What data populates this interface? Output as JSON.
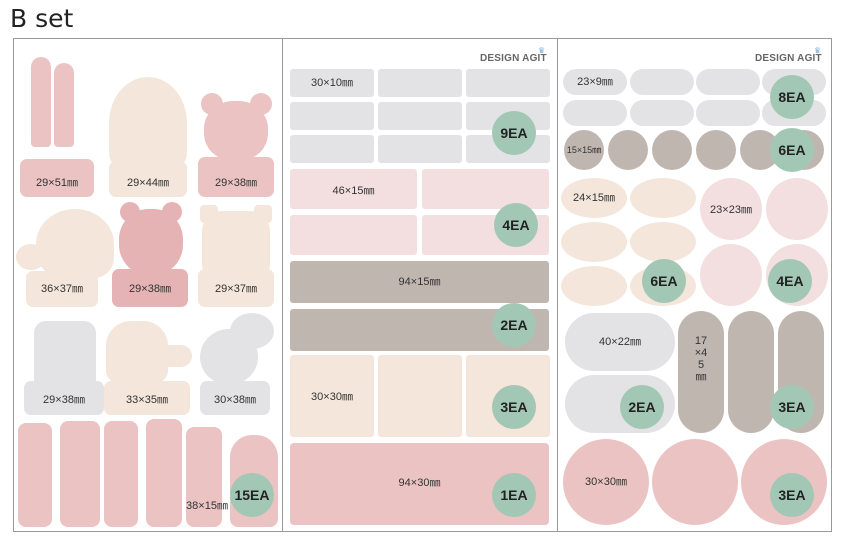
{
  "page": {
    "title": "B set"
  },
  "brand": "DESIGN AGIT",
  "colors": {
    "pink": "#ebc3c3",
    "cream": "#f4e6da",
    "light_gray": "#e3e3e6",
    "light_pink": "#f3dfe0",
    "taupe": "#c0b6b0",
    "mint_badge": "#a3c7b5"
  },
  "panel1": {
    "labels": [
      "29×51㎜",
      "29×44㎜",
      "29×38㎜",
      "36×37㎜",
      "29×38㎜",
      "29×37㎜",
      "29×38㎜",
      "33×35㎜",
      "30×38㎜",
      "38×15㎜"
    ],
    "ea": "15EA"
  },
  "panel2": {
    "rows": [
      {
        "label": "30×10㎜",
        "ea": "9EA"
      },
      {
        "label": "46×15㎜",
        "ea": "4EA"
      },
      {
        "label": "94×15㎜",
        "ea": "2EA"
      },
      {
        "label": "30×30㎜",
        "ea": "3EA"
      },
      {
        "label": "94×30㎜",
        "ea": "1EA"
      }
    ]
  },
  "panel3": {
    "rows": [
      {
        "label": "23×9㎜",
        "ea": "8EA"
      },
      {
        "label": "15×15㎜",
        "ea": "6EA"
      },
      {
        "label": "24×15㎜",
        "ea": "6EA"
      },
      {
        "label": "23×23㎜",
        "ea": "4EA"
      },
      {
        "label": "40×22㎜",
        "ea": "2EA"
      },
      {
        "label": "17×45㎜",
        "ea": "3EA"
      },
      {
        "label": "30×30㎜",
        "ea": "3EA"
      }
    ]
  }
}
